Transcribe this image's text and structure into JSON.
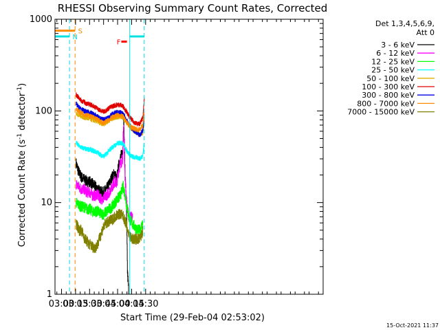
{
  "chart_data": {
    "type": "line",
    "title": "RHESSI Observing Summary Count Rates, Corrected",
    "xlabel": "Start Time (29-Feb-04 02:53:02)",
    "ylabel_main": "Corrected Count Rate (s",
    "ylabel_exp1": "-1",
    "ylabel_mid": " detector",
    "ylabel_exp2": "-1",
    "ylabel_end": ")",
    "yscale": "log",
    "xlim": [
      173,
      460
    ],
    "ylim": [
      1,
      1000
    ],
    "x_unit": "minutes after 00:00 UT",
    "x_ticks": [
      {
        "t": 180,
        "label": "03:00"
      },
      {
        "t": 195,
        "label": "03:15"
      },
      {
        "t": 210,
        "label": "03:30"
      },
      {
        "t": 225,
        "label": "03:45"
      },
      {
        "t": 240,
        "label": "04:00"
      },
      {
        "t": 255,
        "label": "04:15"
      },
      {
        "t": 270,
        "label": "04:30"
      }
    ],
    "y_ticks": [
      {
        "v": 1,
        "label": "1"
      },
      {
        "v": 10,
        "label": "10"
      },
      {
        "v": 100,
        "label": "100"
      },
      {
        "v": 1000,
        "label": "1000"
      }
    ],
    "legend_position": "right",
    "legend_header": [
      "Det 1,3,4,5,6,9,",
      "Att 0"
    ],
    "series": [
      {
        "name": "3 - 6 keV",
        "color": "#000000",
        "x": [
          195.5,
          198,
          201,
          204,
          207,
          210,
          213,
          216,
          219,
          222,
          225,
          228,
          231,
          234,
          237,
          239,
          241,
          242.5,
          244,
          245.5,
          246.5,
          248,
          249.5,
          250.5,
          252
        ],
        "y": [
          27,
          22,
          19,
          18,
          17,
          17,
          16,
          15,
          14,
          13,
          13,
          14,
          16,
          19,
          21,
          18,
          25,
          30,
          33,
          38,
          85,
          20,
          9,
          1.8,
          1
        ]
      },
      {
        "name": "6 - 12 keV",
        "color": "#ff00ff",
        "x": [
          195.5,
          198,
          201,
          204,
          207,
          210,
          213,
          216,
          219,
          222,
          225,
          228,
          231,
          234,
          237,
          239,
          241,
          242.5,
          244,
          245.5,
          246.5,
          248,
          250,
          252,
          254,
          256
        ],
        "y": [
          16,
          15,
          14,
          14,
          13,
          13,
          12,
          12,
          12,
          11,
          11,
          12,
          13,
          15,
          17,
          16,
          22,
          26,
          28,
          30,
          70,
          18,
          9,
          7,
          7,
          7
        ]
      },
      {
        "name": "12 - 25 keV",
        "color": "#00ff00",
        "x": [
          195.5,
          198,
          201,
          204,
          207,
          210,
          213,
          216,
          219,
          222,
          225,
          228,
          231,
          234,
          237,
          240,
          243,
          246,
          248,
          250,
          252,
          255,
          258,
          261,
          264,
          267
        ],
        "y": [
          10,
          9.5,
          9,
          9,
          8.5,
          8.5,
          8,
          8,
          8,
          7.5,
          7.5,
          8,
          8.5,
          9,
          10,
          11,
          12,
          15,
          12,
          9,
          7,
          6,
          5.5,
          5,
          5,
          6
        ]
      },
      {
        "name": "25 - 50 keV",
        "color": "#00ffff",
        "x": [
          195.5,
          198,
          201,
          204,
          207,
          210,
          213,
          216,
          219,
          222,
          225,
          228,
          231,
          234,
          237,
          240,
          243,
          246,
          249,
          252,
          255,
          258,
          261,
          264,
          267,
          268.5
        ],
        "y": [
          45,
          42,
          40,
          39,
          38,
          38,
          37,
          36,
          35,
          33,
          32,
          34,
          37,
          40,
          42,
          44,
          45,
          44,
          38,
          34,
          32,
          31,
          31,
          30,
          33,
          45
        ]
      },
      {
        "name": "50 - 100 keV",
        "color": "#e0b000",
        "x": [
          195.5,
          198,
          201,
          204,
          207,
          210,
          213,
          216,
          219,
          222,
          225,
          228,
          231,
          234,
          237,
          240,
          243,
          246,
          249,
          252,
          255,
          258,
          261,
          264,
          267,
          268.5
        ],
        "y": [
          95,
          90,
          88,
          85,
          83,
          82,
          80,
          78,
          76,
          73,
          72,
          75,
          79,
          82,
          85,
          86,
          86,
          84,
          76,
          70,
          64,
          60,
          57,
          55,
          58,
          75
        ]
      },
      {
        "name": "100 - 300 keV",
        "color": "#e00000",
        "x": [
          195.5,
          198,
          201,
          204,
          207,
          210,
          213,
          216,
          219,
          222,
          225,
          228,
          231,
          234,
          237,
          240,
          243,
          246,
          249,
          252,
          255,
          258,
          261,
          264,
          267,
          268.5
        ],
        "y": [
          150,
          140,
          130,
          125,
          120,
          118,
          115,
          110,
          105,
          100,
          98,
          102,
          108,
          112,
          115,
          117,
          116,
          112,
          100,
          88,
          80,
          75,
          72,
          73,
          85,
          140
        ]
      },
      {
        "name": "300 - 800 keV",
        "color": "#0000e0",
        "x": [
          195.5,
          198,
          201,
          204,
          207,
          210,
          213,
          216,
          219,
          222,
          225,
          228,
          231,
          234,
          237,
          240,
          243,
          246,
          249,
          252,
          255,
          258,
          261,
          264,
          267,
          268.5
        ],
        "y": [
          120,
          110,
          105,
          100,
          98,
          96,
          93,
          90,
          86,
          82,
          80,
          83,
          87,
          92,
          95,
          97,
          96,
          92,
          82,
          72,
          65,
          60,
          56,
          54,
          62,
          90
        ]
      },
      {
        "name": "800 - 7000 keV",
        "color": "#ff8c00",
        "x": [
          195.5,
          198,
          201,
          204,
          207,
          210,
          213,
          216,
          219,
          222,
          225,
          228,
          231,
          234,
          237,
          240,
          243,
          246,
          249,
          252,
          255,
          258,
          261,
          264,
          267,
          268.5
        ],
        "y": [
          105,
          100,
          95,
          92,
          90,
          88,
          86,
          83,
          80,
          76,
          74,
          77,
          81,
          85,
          88,
          90,
          89,
          86,
          77,
          70,
          66,
          64,
          62,
          63,
          70,
          95
        ]
      },
      {
        "name": "7000 - 15000 keV",
        "color": "#808000",
        "x": [
          195.5,
          197,
          199,
          201,
          203,
          205,
          207,
          209,
          211,
          213,
          215,
          217,
          219,
          222,
          225,
          228,
          231,
          234,
          237,
          240,
          243,
          246,
          249,
          252,
          255,
          258,
          261,
          264,
          267
        ],
        "y": [
          6,
          5.5,
          5,
          5,
          4.5,
          4,
          3.8,
          3.5,
          3.5,
          3.3,
          3.2,
          3.3,
          3.6,
          4.5,
          5.5,
          6,
          6.2,
          6.5,
          7,
          7.5,
          7.5,
          7,
          6,
          4.5,
          4,
          4,
          4,
          4,
          5
        ]
      }
    ],
    "markers": [
      {
        "label": "N",
        "color": "#00e0e0",
        "x_start": 173,
        "x_end": 188.5,
        "y": 650,
        "label_x": 189.5,
        "line_x": 188.5,
        "dashed": true
      },
      {
        "label": "N",
        "color": "#00e0e0",
        "x_start": 253,
        "x_end": 268.5,
        "y": 650,
        "label_x": null,
        "line_x": 268.5,
        "dashed": true
      },
      {
        "label": "S",
        "color": "#ff8c00",
        "x_start": 173,
        "x_end": 194.5,
        "y": 750,
        "label_x": 195.5,
        "line_x": 194.5,
        "dashed": true
      },
      {
        "label": "F",
        "color": "#ff0000",
        "x_start": 244,
        "x_end": 250,
        "y": 570,
        "label_x": 240.5,
        "line_x": null,
        "dashed": false
      }
    ],
    "solid_vertical_lines": [
      {
        "color": "#00e0e0",
        "x": 253
      }
    ]
  },
  "footer": {
    "timestamp": "15-Oct-2021 11:37"
  }
}
